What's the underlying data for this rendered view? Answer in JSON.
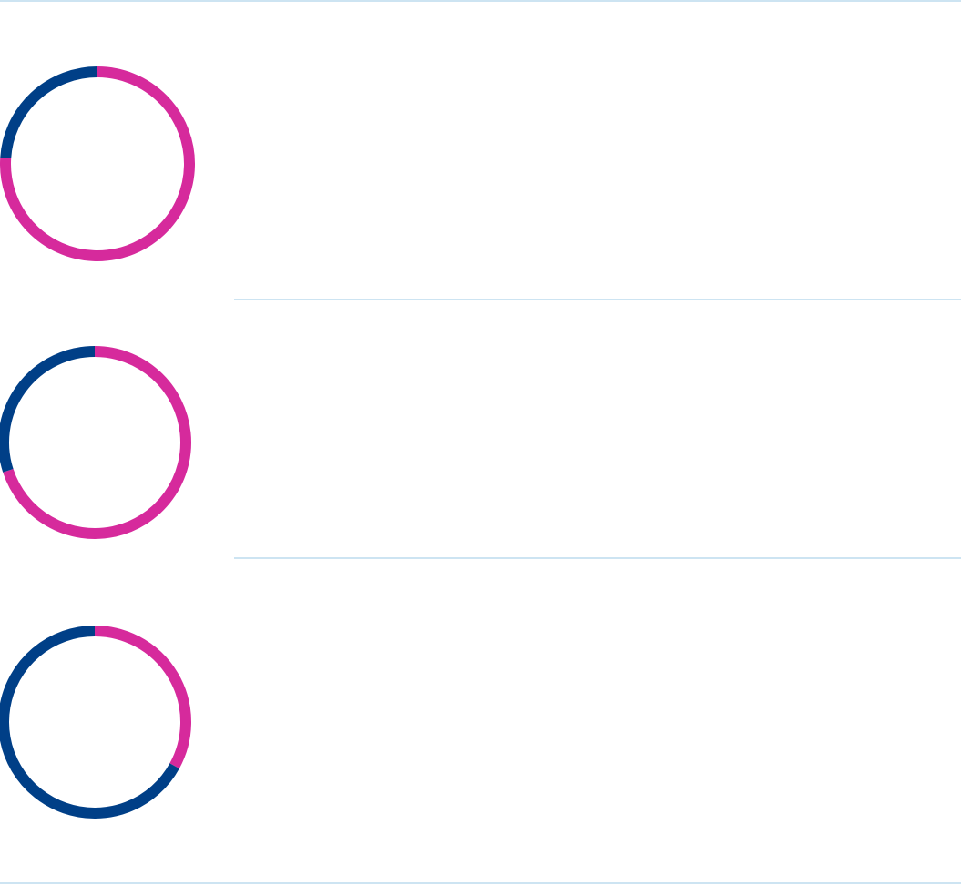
{
  "colors": {
    "highlight": "#d62a9c",
    "remainder": "#003f87",
    "divider": "#cde4f2",
    "background": "#ffffff"
  },
  "chart_data": [
    {
      "type": "pie",
      "variant": "ring",
      "title": "",
      "slices": [
        {
          "label": "",
          "value": 76,
          "color": "#d62a9c"
        },
        {
          "label": "",
          "value": 24,
          "color": "#003f87"
        }
      ]
    },
    {
      "type": "pie",
      "variant": "ring",
      "title": "",
      "slices": [
        {
          "label": "",
          "value": 70,
          "color": "#d62a9c"
        },
        {
          "label": "",
          "value": 30,
          "color": "#003f87"
        }
      ]
    },
    {
      "type": "pie",
      "variant": "ring",
      "title": "",
      "slices": [
        {
          "label": "",
          "value": 33,
          "color": "#d62a9c"
        },
        {
          "label": "",
          "value": 67,
          "color": "#003f87"
        }
      ]
    }
  ]
}
